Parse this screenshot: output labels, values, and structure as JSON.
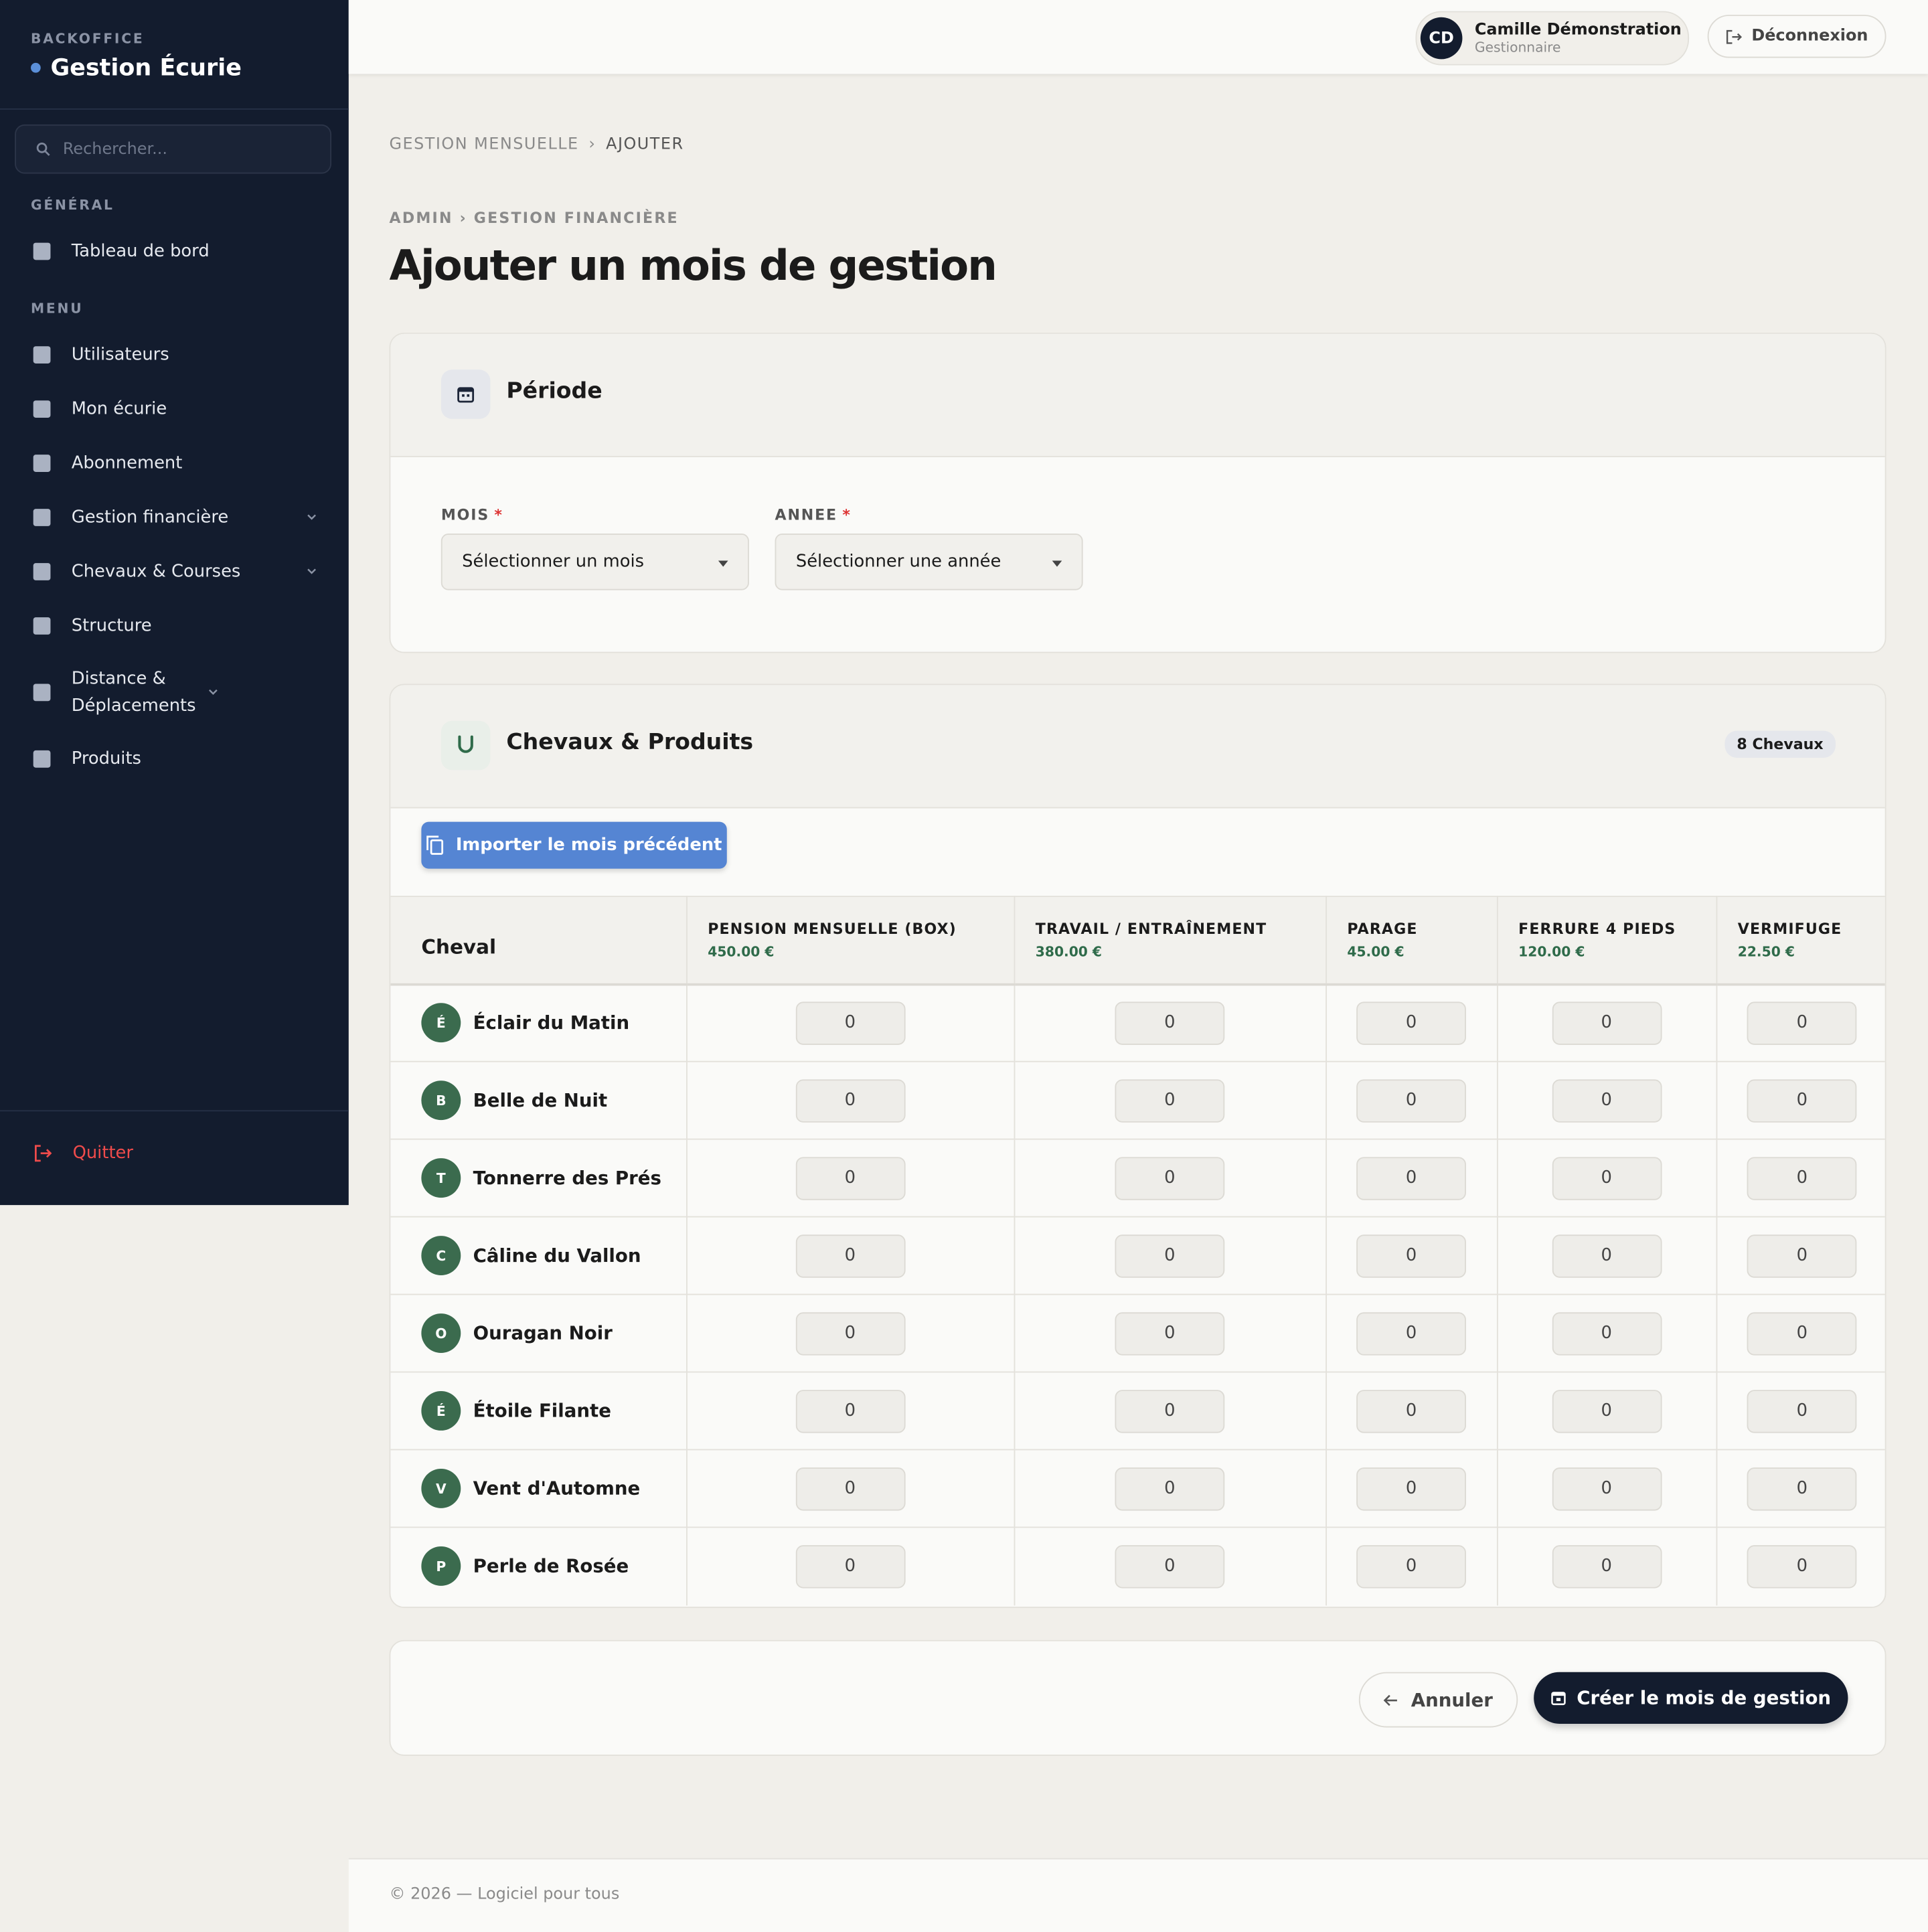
{
  "sidebar": {
    "eyebrow": "BACKOFFICE",
    "brand": "Gestion Écurie",
    "search_placeholder": "Rechercher...",
    "sections": [
      {
        "title": "GÉNÉRAL",
        "items": [
          {
            "label": "Tableau de bord",
            "expandable": false
          }
        ]
      },
      {
        "title": "MENU",
        "items": [
          {
            "label": "Utilisateurs",
            "expandable": false
          },
          {
            "label": "Mon écurie",
            "expandable": false
          },
          {
            "label": "Abonnement",
            "expandable": false
          },
          {
            "label": "Gestion financière",
            "expandable": true
          },
          {
            "label": "Chevaux & Courses",
            "expandable": true
          },
          {
            "label": "Structure",
            "expandable": false
          },
          {
            "label": "Distance & Déplacements",
            "expandable": true
          },
          {
            "label": "Produits",
            "expandable": false
          }
        ]
      }
    ],
    "quit": "Quitter"
  },
  "topbar": {
    "initials": "CD",
    "user_name": "Camille Démonstration",
    "user_role": "Gestionnaire",
    "logout": "Déconnexion"
  },
  "breadcrumb": {
    "items": [
      "GESTION MENSUELLE",
      "AJOUTER"
    ],
    "separator": "›"
  },
  "page": {
    "eyebrow": "ADMIN › GESTION FINANCIÈRE",
    "title": "Ajouter un mois de gestion"
  },
  "periode": {
    "title": "Période",
    "fields": [
      {
        "label": "MOIS",
        "required": "*",
        "placeholder": "Sélectionner un mois"
      },
      {
        "label": "ANNEE",
        "required": "*",
        "placeholder": "Sélectionner une année"
      }
    ]
  },
  "products": {
    "title": "Chevaux & Produits",
    "badge": "8 Chevaux",
    "import_button": "Importer le mois précédent",
    "table": {
      "first_column": "Cheval",
      "columns": [
        {
          "name": "PENSION MENSUELLE (BOX)",
          "price": "450.00 €"
        },
        {
          "name": "TRAVAIL / ENTRAÎNEMENT",
          "price": "380.00 €"
        },
        {
          "name": "PARAGE",
          "price": "45.00 €"
        },
        {
          "name": "FERRURE 4 PIEDS",
          "price": "120.00 €"
        },
        {
          "name": "VERMIFUGE",
          "price": "22.50 €"
        }
      ],
      "rows": [
        {
          "initial": "É",
          "name": "Éclair du Matin",
          "values": [
            0,
            0,
            0,
            0,
            0
          ]
        },
        {
          "initial": "B",
          "name": "Belle de Nuit",
          "values": [
            0,
            0,
            0,
            0,
            0
          ]
        },
        {
          "initial": "T",
          "name": "Tonnerre des Prés",
          "values": [
            0,
            0,
            0,
            0,
            0
          ]
        },
        {
          "initial": "C",
          "name": "Câline du Vallon",
          "values": [
            0,
            0,
            0,
            0,
            0
          ]
        },
        {
          "initial": "O",
          "name": "Ouragan Noir",
          "values": [
            0,
            0,
            0,
            0,
            0
          ]
        },
        {
          "initial": "É",
          "name": "Étoile Filante",
          "values": [
            0,
            0,
            0,
            0,
            0
          ]
        },
        {
          "initial": "V",
          "name": "Vent d'Automne",
          "values": [
            0,
            0,
            0,
            0,
            0
          ]
        },
        {
          "initial": "P",
          "name": "Perle de Rosée",
          "values": [
            0,
            0,
            0,
            0,
            0
          ]
        }
      ]
    }
  },
  "actions": {
    "cancel": "Annuler",
    "submit": "Créer le mois de gestion"
  },
  "footer": "© 2026 — Logiciel pour tous"
}
